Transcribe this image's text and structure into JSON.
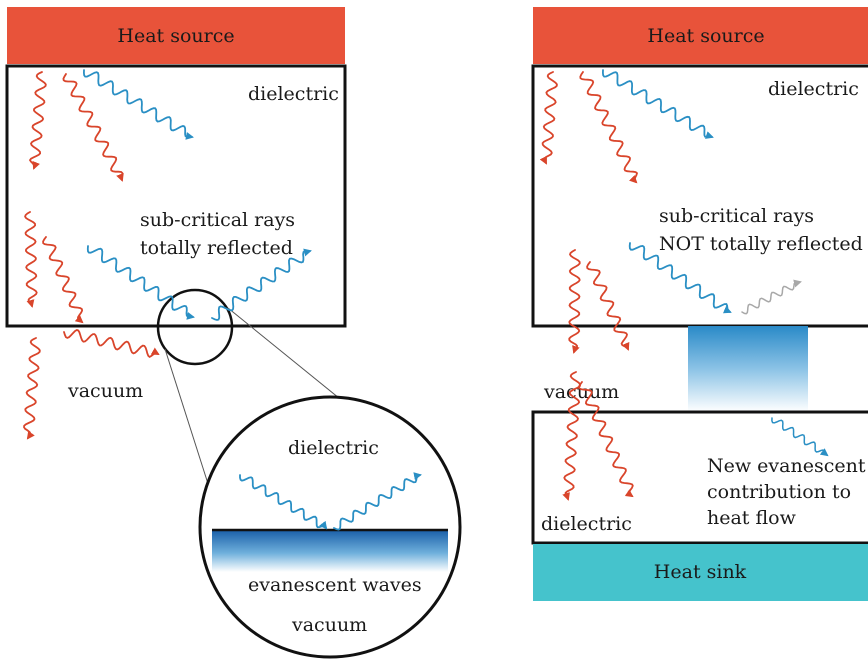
{
  "left": {
    "heat_source": "Heat source",
    "dielectric": "dielectric",
    "sub_critical_line1": "sub-critical rays",
    "sub_critical_line2": "totally reflected",
    "vacuum": "vacuum",
    "zoom": {
      "dielectric": "dielectric",
      "evanescent": "evanescent waves",
      "vacuum": "vacuum"
    }
  },
  "right": {
    "heat_source": "Heat source",
    "dielectric_top": "dielectric",
    "sub_critical_line1": "sub-critical rays",
    "sub_critical_line2": "NOT totally reflected",
    "vacuum": "vacuum",
    "dielectric_bottom": "dielectric",
    "new_line1": "New evanescent",
    "new_line2": "contribution to",
    "new_line3": "heat flow",
    "heat_sink": "Heat sink"
  },
  "colors": {
    "heat_source": "#e8533a",
    "heat_sink": "#45c3cc",
    "red_ray": "#d9452b",
    "blue_ray": "#2a8fc4",
    "gray_ray": "#a8a8a8",
    "evanescent": "#1e6fb8"
  }
}
